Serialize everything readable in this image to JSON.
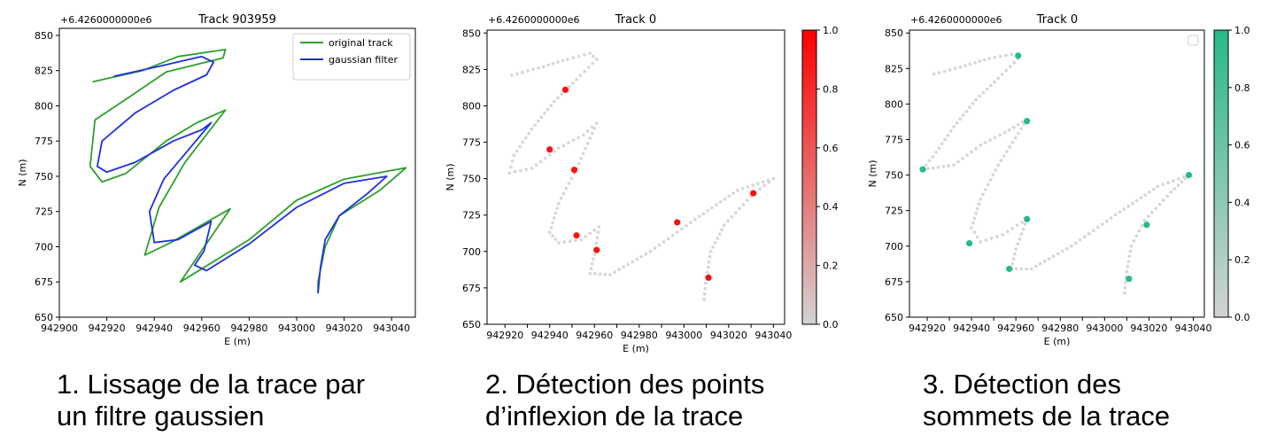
{
  "panels": [
    {
      "caption": [
        "1. Lissage de la trace par",
        "un filtre gaussien"
      ],
      "chart_data": {
        "type": "line",
        "title": "Track 903959",
        "offset_label": "+6.4260000000e6",
        "xlabel": "E (m)",
        "ylabel": "N (m)",
        "xlim": [
          942900,
          943050
        ],
        "ylim": [
          650,
          855
        ],
        "xticks": [
          942900,
          942920,
          942940,
          942960,
          942980,
          943000,
          943020,
          943040
        ],
        "yticks": [
          650,
          675,
          700,
          725,
          750,
          775,
          800,
          825,
          850
        ],
        "legend": {
          "position": "top-right",
          "entries": [
            "original track",
            "gaussian filter"
          ]
        },
        "series": [
          {
            "name": "original track",
            "color": "#2ca02c",
            "x": [
              942914,
              942935,
              942950,
              942970,
              942969,
              942945,
              942931,
              942915,
              942913,
              942918,
              942928,
              942945,
              942958,
              942970,
              942953,
              942942,
              942936,
              942947,
              942972,
              942951,
              942980,
              943000,
              943020,
              943046,
              943035,
              943018,
              943012,
              943009,
              943009
            ],
            "y": [
              817,
              825,
              835,
              840,
              834,
              824,
              808,
              790,
              757,
              746,
              752,
              775,
              788,
              797,
              760,
              728,
              694,
              703,
              727,
              675,
              705,
              733,
              748,
              756,
              740,
              722,
              700,
              675,
              667
            ]
          },
          {
            "name": "gaussian filter",
            "color": "#1f30e0",
            "x": [
              942923,
              942942,
              942960,
              942965,
              942962,
              942948,
              942932,
              942918,
              942916,
              942920,
              942932,
              942948,
              942960,
              942964,
              942955,
              942944,
              942938,
              942940,
              942950,
              942964,
              942961,
              942957,
              942962,
              942980,
              943000,
              943020,
              943038,
              943030,
              943018,
              943012,
              943010,
              943009
            ],
            "y": [
              821,
              828,
              835,
              831,
              822,
              811,
              795,
              775,
              757,
              753,
              760,
              775,
              783,
              788,
              770,
              748,
              725,
              703,
              705,
              718,
              697,
              687,
              683,
              702,
              728,
              745,
              750,
              738,
              722,
              705,
              685,
              667
            ]
          }
        ]
      }
    },
    {
      "caption": [
        "2. Détection des points",
        "d’inflexion de la trace"
      ],
      "chart_data": {
        "type": "scatter",
        "title": "Track 0",
        "offset_label": "+6.4260000000e6",
        "xlabel": "E (m)",
        "ylabel": "N (m)",
        "xlim": [
          942912,
          943045
        ],
        "ylim": [
          650,
          852
        ],
        "xticks": [
          942920,
          942930,
          942940,
          942950,
          942960,
          942970,
          942980,
          942990,
          943000,
          943010,
          943020,
          943030,
          943040
        ],
        "xtick_labels": [
          "942920",
          "942930",
          "942940",
          "942950",
          "942960",
          "942970",
          "942980",
          "942990",
          "943000",
          "943010",
          "943020",
          "943030",
          "943040"
        ],
        "yticks": [
          650,
          675,
          700,
          725,
          750,
          775,
          800,
          825,
          850
        ],
        "colorbar": {
          "min": 0.0,
          "max": 1.0,
          "ticks": [
            "0.0",
            "0.2",
            "0.4",
            "0.6",
            "0.8",
            "1.0"
          ],
          "color_low": "#d3d3d3",
          "color_high": "#ff0000"
        },
        "track": {
          "color": "#d8d8d8",
          "x": [
            942923,
            942935,
            942948,
            942958,
            942961,
            942952,
            942942,
            942932,
            942924,
            942922,
            942932,
            942944,
            942955,
            942961,
            942952,
            942944,
            942940,
            942944,
            942954,
            942962,
            942960,
            942958,
            942967,
            942985,
            943005,
            943024,
            943040,
            943030,
            943018,
            943012,
            943010,
            943009
          ],
          "y": [
            821,
            826,
            832,
            836,
            832,
            818,
            803,
            784,
            766,
            754,
            757,
            771,
            780,
            788,
            757,
            733,
            713,
            706,
            708,
            717,
            698,
            685,
            684,
            700,
            722,
            742,
            750,
            738,
            718,
            700,
            682,
            667
          ]
        },
        "points": {
          "color": "#ff1010",
          "x": [
            942947,
            942940,
            942951,
            942952,
            942961,
            942997,
            943031,
            943011
          ],
          "y": [
            811,
            770,
            756,
            711,
            701,
            720,
            740,
            682
          ]
        }
      }
    },
    {
      "caption": [
        "3. Détection des",
        "sommets de la trace"
      ],
      "chart_data": {
        "type": "scatter",
        "title": "Track 0",
        "offset_label": "+6.4260000000e6",
        "xlabel": "E (m)",
        "ylabel": "N (m)",
        "xlim": [
          942912,
          943045
        ],
        "ylim": [
          650,
          852
        ],
        "xticks": [
          942920,
          942930,
          942940,
          942950,
          942960,
          942970,
          942980,
          942990,
          943000,
          943010,
          943020,
          943030,
          943040
        ],
        "xtick_labels": [
          "942920",
          "942930",
          "942940",
          "942950",
          "942960",
          "942970",
          "942980",
          "942990",
          "943000",
          "943010",
          "943020",
          "943030",
          "943040"
        ],
        "yticks": [
          650,
          675,
          700,
          725,
          750,
          775,
          800,
          825,
          850
        ],
        "legend": {
          "position": "top-right",
          "entries": []
        },
        "colorbar": {
          "min": 0.0,
          "max": 1.0,
          "ticks": [
            "0.0",
            "0.2",
            "0.4",
            "0.6",
            "0.8",
            "1.0"
          ],
          "color_low": "#d3d3d3",
          "color_high": "#26b98a"
        },
        "track": {
          "color": "#d8d8d8",
          "x": [
            942923,
            942935,
            942948,
            942958,
            942961,
            942952,
            942942,
            942932,
            942924,
            942918,
            942932,
            942944,
            942955,
            942965,
            942952,
            942944,
            942940,
            942944,
            942954,
            942965,
            942960,
            942958,
            942967,
            942985,
            943005,
            943024,
            943038,
            943030,
            943018,
            943012,
            943010,
            943009
          ],
          "y": [
            821,
            826,
            832,
            835,
            832,
            818,
            803,
            784,
            766,
            754,
            757,
            771,
            780,
            789,
            757,
            733,
            713,
            703,
            708,
            719,
            698,
            684,
            684,
            700,
            722,
            742,
            750,
            738,
            718,
            700,
            682,
            667
          ]
        },
        "points": {
          "color": "#26b98a",
          "x": [
            942961,
            942918,
            942965,
            942939,
            942965,
            942957,
            943038,
            943019,
            943011
          ],
          "y": [
            834,
            754,
            788,
            702,
            719,
            684,
            750,
            715,
            677
          ]
        }
      }
    }
  ]
}
